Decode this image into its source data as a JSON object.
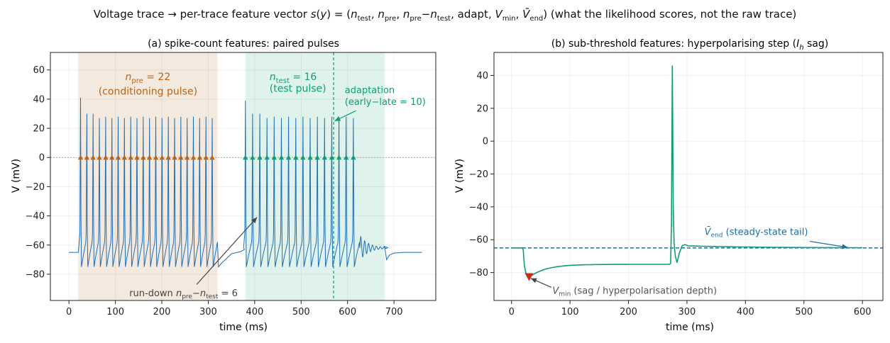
{
  "suptitle_parts": {
    "a": "Voltage trace ",
    "arrow": "→",
    "b": " per-trace feature vector ",
    "s": "s",
    "c": "(",
    "y": "y",
    "d": ") = (",
    "n1": "n",
    "test1": "test",
    "comma1": ", ",
    "n2": "n",
    "pre2": "pre",
    "comma2": ", ",
    "n3": "n",
    "pre3": "pre",
    "minus": "−",
    "n4": "n",
    "test4": "test",
    "comma3": ", adapt, ",
    "V1": "V",
    "min1": "min",
    "comma4": ", ",
    "V2": "V̄",
    "end2": "end",
    "e": ")  (what the likelihood scores, not the raw trace)"
  },
  "chart_data": [
    {
      "type": "line",
      "title": "(a) spike-count features: paired pulses",
      "xlabel": "time (ms)",
      "ylabel": "V (mV)",
      "xlim": [
        -40,
        790
      ],
      "ylim": [
        -98,
        72
      ],
      "xticks": [
        0,
        100,
        200,
        300,
        400,
        500,
        600,
        700
      ],
      "yticks": [
        -80,
        -60,
        -40,
        -20,
        0,
        20,
        40,
        60
      ],
      "xtick_labels": [
        "0",
        "100",
        "200",
        "300",
        "400",
        "500",
        "600",
        "700"
      ],
      "ytick_labels": [
        "−80",
        "−60",
        "−40",
        "−20",
        "0",
        "20",
        "40",
        "60"
      ],
      "grid": true,
      "colors": {
        "trace": "#1f6fb5",
        "pre": "#b5651d",
        "test": "#0e9e72",
        "pre_shade": "#f3e9de",
        "test_shade": "#dff2ec",
        "annotation": "#444444"
      },
      "shaded_regions": [
        {
          "name": "conditioning",
          "x": [
            20,
            320
          ]
        },
        {
          "name": "test",
          "x": [
            380,
            680
          ]
        }
      ],
      "threshold_line_y": 0,
      "adaptation_marker_x": 570,
      "spikes_pre": {
        "n": 22,
        "t_start": 25,
        "isi": 13.5
      },
      "spikes_test": {
        "n": 16,
        "t_start": 380,
        "isi": 15.5
      },
      "baseline": -65,
      "trough": -75,
      "annotations": {
        "pre_label_n": "n",
        "pre_label_sub": "pre",
        "pre_label_eq": " = 22",
        "pre_label_2": "(conditioning pulse)",
        "test_label_n": "n",
        "test_label_sub": "test",
        "test_label_eq": " = 16",
        "test_label_2": "(test pulse)",
        "adapt_1": "adaptation",
        "adapt_2": "(early−late = 10)",
        "rundown_a": "run-down ",
        "rundown_n1": "n",
        "rundown_s1": "pre",
        "rundown_m": "−",
        "rundown_n2": "n",
        "rundown_s2": "test",
        "rundown_eq": " = 6"
      }
    },
    {
      "type": "line",
      "title_a": "(b) sub-threshold features: hyperpolarising step (",
      "title_I": "I",
      "title_h": "h",
      "title_b": " sag)",
      "xlabel": "time (ms)",
      "ylabel": "V (mV)",
      "xlim": [
        -30,
        635
      ],
      "ylim": [
        -97,
        54
      ],
      "xticks": [
        0,
        100,
        200,
        300,
        400,
        500,
        600
      ],
      "yticks": [
        -80,
        -60,
        -40,
        -20,
        0,
        20,
        40
      ],
      "xtick_labels": [
        "0",
        "100",
        "200",
        "300",
        "400",
        "500",
        "600"
      ],
      "ytick_labels": [
        "−80",
        "−60",
        "−40",
        "−20",
        "0",
        "20",
        "40"
      ],
      "grid": true,
      "colors": {
        "trace": "#0e9e72",
        "vend": "#1a6fa8",
        "vmin": "#c0311a",
        "annotation": "#555555"
      },
      "vend_line_y": -65,
      "vmin_point": {
        "x": 30,
        "y": -83
      },
      "spike": {
        "t": 275,
        "peak": 46
      },
      "annotations": {
        "vend_V": "V̄",
        "vend_sub": "end",
        "vend_text": " (steady-state tail)",
        "vmin_V": "V",
        "vmin_sub": "min",
        "vmin_text": " (sag / hyperpolarisation depth)"
      }
    }
  ]
}
